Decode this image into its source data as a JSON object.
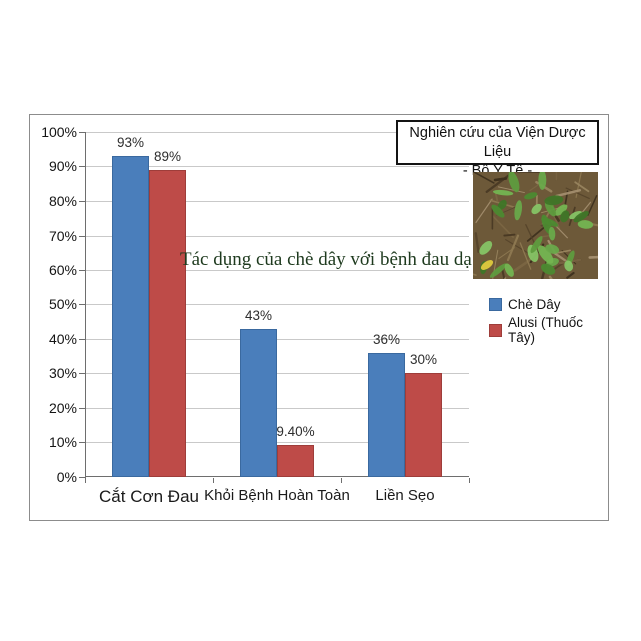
{
  "title_box": {
    "line1": "Nghiên cứu của Viện Dược Liệu",
    "line2": "- Bộ Y Tế -"
  },
  "overlay_title": "Tác dụng của chè dây với bệnh đau dạ dày",
  "chart_data": {
    "type": "bar",
    "title": "Tác dụng của chè dây với bệnh đau dạ dày",
    "annotation_box": [
      "Nghiên cứu của Viện Dược Liệu",
      "- Bộ Y Tế -"
    ],
    "categories": [
      "Cắt Cơn Đau",
      "Khỏi Bệnh Hoàn Toàn",
      "Liền Sẹo"
    ],
    "series": [
      {
        "name": "Chè Dây",
        "color": "#4a7ebb",
        "border_color": "#3a699f",
        "values": [
          93,
          43,
          36
        ],
        "data_labels": [
          "93%",
          "43%",
          "36%"
        ]
      },
      {
        "name": "Alusi (Thuốc Tây)",
        "color": "#be4b48",
        "border_color": "#9e3d3a",
        "values": [
          89,
          9.4,
          30
        ],
        "data_labels": [
          "89%",
          "9.40%",
          "30%"
        ]
      }
    ],
    "xlabel": "",
    "ylabel": "",
    "ylim": [
      0,
      100
    ],
    "y_ticks": [
      "0%",
      "10%",
      "20%",
      "30%",
      "40%",
      "50%",
      "60%",
      "70%",
      "80%",
      "90%",
      "100%"
    ],
    "grid": true,
    "legend_position": "right",
    "overlay_title_color": "#1e3a1e"
  }
}
